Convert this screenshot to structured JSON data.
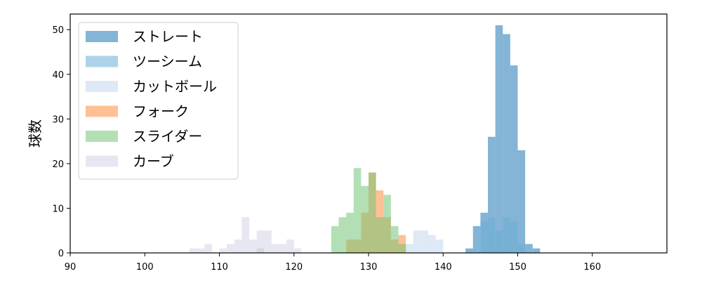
{
  "chart_data": {
    "type": "histogram",
    "ylabel": "球数",
    "xlim": [
      90,
      170
    ],
    "ylim": [
      0,
      53.5
    ],
    "xticks": [
      90,
      100,
      110,
      120,
      130,
      140,
      150,
      160
    ],
    "yticks": [
      0,
      10,
      20,
      30,
      40,
      50
    ],
    "legend_position": "top-left",
    "series": [
      {
        "name": "ストレート",
        "color": "#1f77b4",
        "alpha": 0.55,
        "bin_width": 1,
        "bins": [
          [
            143,
            1
          ],
          [
            144,
            6
          ],
          [
            145,
            9
          ],
          [
            146,
            26
          ],
          [
            147,
            51
          ],
          [
            148,
            49
          ],
          [
            149,
            42
          ],
          [
            150,
            23
          ],
          [
            151,
            2
          ],
          [
            152,
            1
          ]
        ]
      },
      {
        "name": "ツーシーム",
        "color": "#6baed6",
        "alpha": 0.55,
        "bin_width": 1,
        "bins": [
          [
            145,
            7
          ],
          [
            146,
            8
          ],
          [
            147,
            5
          ],
          [
            148,
            8
          ],
          [
            149,
            7
          ],
          [
            150,
            2
          ]
        ]
      },
      {
        "name": "カットボール",
        "color": "#c6dbef",
        "alpha": 0.6,
        "bin_width": 1,
        "bins": [
          [
            135,
            2
          ],
          [
            136,
            5
          ],
          [
            137,
            5
          ],
          [
            138,
            4
          ],
          [
            139,
            3
          ]
        ]
      },
      {
        "name": "フォーク",
        "color": "#fd8d3c",
        "alpha": 0.55,
        "bin_width": 1,
        "bins": [
          [
            127,
            3
          ],
          [
            128,
            3
          ],
          [
            129,
            9
          ],
          [
            130,
            18
          ],
          [
            131,
            14
          ],
          [
            132,
            8
          ],
          [
            133,
            3
          ],
          [
            134,
            4
          ]
        ]
      },
      {
        "name": "スライダー",
        "color": "#74c476",
        "alpha": 0.55,
        "bin_width": 1,
        "bins": [
          [
            115,
            1
          ],
          [
            125,
            6
          ],
          [
            126,
            8
          ],
          [
            127,
            9
          ],
          [
            128,
            19
          ],
          [
            129,
            15
          ],
          [
            130,
            18
          ],
          [
            131,
            8
          ],
          [
            132,
            13
          ],
          [
            133,
            6
          ],
          [
            134,
            2
          ]
        ]
      },
      {
        "name": "カーブ",
        "color": "#dadaeb",
        "alpha": 0.65,
        "bin_width": 1,
        "bins": [
          [
            106,
            1
          ],
          [
            107,
            1
          ],
          [
            108,
            2
          ],
          [
            110,
            1
          ],
          [
            111,
            2
          ],
          [
            112,
            3
          ],
          [
            113,
            8
          ],
          [
            114,
            3
          ],
          [
            115,
            5
          ],
          [
            116,
            5
          ],
          [
            117,
            2
          ],
          [
            118,
            2
          ],
          [
            119,
            3
          ],
          [
            120,
            1
          ]
        ]
      }
    ]
  }
}
